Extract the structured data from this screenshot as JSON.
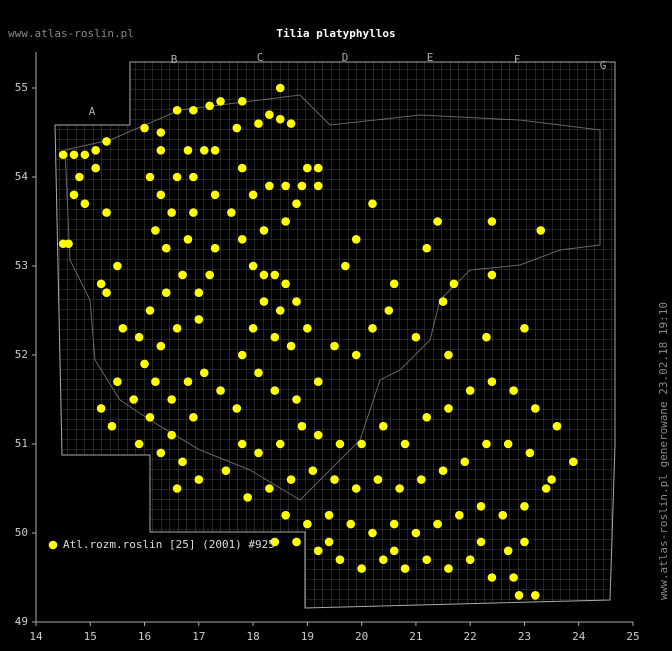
{
  "chart_data": {
    "type": "scatter",
    "title": "Tilia platyphyllos",
    "source": "www.atlas-roslin.pl",
    "side_note": "www.atlas-roslin.pl generowane 23.02.18 19:10",
    "grid_letters": [
      "A",
      "B",
      "C",
      "D",
      "E",
      "F",
      "G"
    ],
    "xlim": [
      14,
      25
    ],
    "ylim": [
      49,
      55.4
    ],
    "xticks": [
      14,
      15,
      16,
      17,
      18,
      19,
      20,
      21,
      22,
      23,
      24,
      25
    ],
    "yticks": [
      49,
      50,
      51,
      52,
      53,
      54,
      55
    ],
    "series": [
      {
        "name": "Atl.rozm.roslin [25] (2001) #925",
        "color": "#ffff00",
        "x": [
          14.5,
          14.7,
          14.9,
          15.1,
          15.3,
          15.1,
          14.8,
          14.7,
          14.9,
          15.3,
          14.5,
          14.6,
          15.5,
          15.2,
          15.3,
          16.0,
          16.3,
          16.6,
          16.9,
          17.2,
          17.4,
          17.7,
          18.1,
          18.3,
          18.5,
          18.7,
          18.5,
          17.8,
          16.8,
          17.1,
          17.3,
          16.3,
          16.1,
          16.6,
          16.9,
          16.3,
          16.5,
          16.9,
          17.3,
          17.6,
          17.8,
          18.0,
          18.3,
          18.6,
          18.9,
          19.0,
          19.2,
          19.2,
          18.8,
          18.6,
          18.2,
          17.8,
          17.3,
          16.8,
          16.4,
          16.2,
          20.2,
          21.4,
          22.4,
          19.7,
          20.6,
          21.2,
          19.9,
          15.6,
          15.9,
          16.1,
          16.4,
          16.7,
          17.0,
          17.2,
          17.0,
          16.6,
          16.3,
          16.0,
          16.2,
          16.5,
          16.8,
          17.1,
          17.4,
          17.7,
          16.9,
          16.5,
          16.1,
          15.8,
          15.5,
          15.2,
          15.4,
          15.9,
          16.3,
          16.7,
          17.0,
          16.6,
          18.0,
          18.2,
          18.4,
          18.6,
          18.2,
          18.5,
          18.8,
          18.0,
          18.4,
          18.7,
          19.0,
          17.8,
          18.1,
          18.4,
          18.8,
          19.2,
          19.5,
          19.9,
          20.2,
          20.5,
          21.0,
          21.5,
          21.7,
          21.6,
          22.3,
          23.0,
          23.3,
          22.4,
          17.8,
          18.1,
          18.5,
          18.9,
          19.2,
          19.6,
          20.0,
          20.4,
          20.8,
          21.2,
          21.6,
          22.0,
          22.4,
          22.8,
          23.2,
          23.6,
          23.9,
          23.5,
          23.1,
          22.7,
          22.3,
          21.9,
          21.5,
          21.1,
          20.7,
          20.3,
          19.9,
          19.5,
          19.1,
          18.7,
          18.3,
          17.9,
          17.5,
          18.6,
          19.0,
          19.4,
          19.8,
          20.2,
          20.6,
          21.0,
          21.4,
          21.8,
          22.2,
          22.6,
          23.0,
          23.4,
          19.2,
          19.6,
          20.0,
          20.4,
          20.8,
          21.2,
          21.6,
          22.0,
          22.4,
          22.8,
          22.9,
          23.2,
          18.8,
          19.4,
          20.6,
          22.2,
          22.7,
          23.0,
          18.4
        ],
        "values": [
          54.25,
          54.25,
          54.25,
          54.3,
          54.4,
          54.1,
          54.0,
          53.8,
          53.7,
          53.6,
          53.25,
          53.25,
          53.0,
          52.8,
          52.7,
          54.55,
          54.5,
          54.75,
          54.75,
          54.8,
          54.85,
          54.55,
          54.6,
          54.7,
          54.65,
          54.6,
          55.0,
          54.85,
          54.3,
          54.3,
          54.3,
          54.3,
          54.0,
          54.0,
          54.0,
          53.8,
          53.6,
          53.6,
          53.8,
          53.6,
          54.1,
          53.8,
          53.9,
          53.9,
          53.9,
          54.1,
          54.1,
          53.9,
          53.7,
          53.5,
          53.4,
          53.3,
          53.2,
          53.3,
          53.2,
          53.4,
          53.7,
          53.5,
          53.5,
          53.0,
          52.8,
          53.2,
          53.3,
          52.3,
          52.2,
          52.5,
          52.7,
          52.9,
          52.7,
          52.9,
          52.4,
          52.3,
          52.1,
          51.9,
          51.7,
          51.5,
          51.7,
          51.8,
          51.6,
          51.4,
          51.3,
          51.1,
          51.3,
          51.5,
          51.7,
          51.4,
          51.2,
          51.0,
          50.9,
          50.8,
          50.6,
          50.5,
          53.0,
          52.9,
          52.9,
          52.8,
          52.6,
          52.5,
          52.6,
          52.3,
          52.2,
          52.1,
          52.3,
          52.0,
          51.8,
          51.6,
          51.5,
          51.7,
          52.1,
          52.0,
          52.3,
          52.5,
          52.2,
          52.6,
          52.8,
          52.0,
          52.2,
          52.3,
          53.4,
          52.9,
          51.0,
          50.9,
          51.0,
          51.2,
          51.1,
          51.0,
          51.0,
          51.2,
          51.0,
          51.3,
          51.4,
          51.6,
          51.7,
          51.6,
          51.4,
          51.2,
          50.8,
          50.6,
          50.9,
          51.0,
          51.0,
          50.8,
          50.7,
          50.6,
          50.5,
          50.6,
          50.5,
          50.6,
          50.7,
          50.6,
          50.5,
          50.4,
          50.7,
          50.2,
          50.1,
          50.2,
          50.1,
          50.0,
          50.1,
          50.0,
          50.1,
          50.2,
          50.3,
          50.2,
          50.3,
          50.5,
          49.8,
          49.7,
          49.6,
          49.7,
          49.6,
          49.7,
          49.6,
          49.7,
          49.5,
          49.5,
          49.3,
          49.3,
          49.9,
          49.9,
          49.8,
          49.9,
          49.8,
          49.9,
          49.9
        ]
      }
    ]
  }
}
